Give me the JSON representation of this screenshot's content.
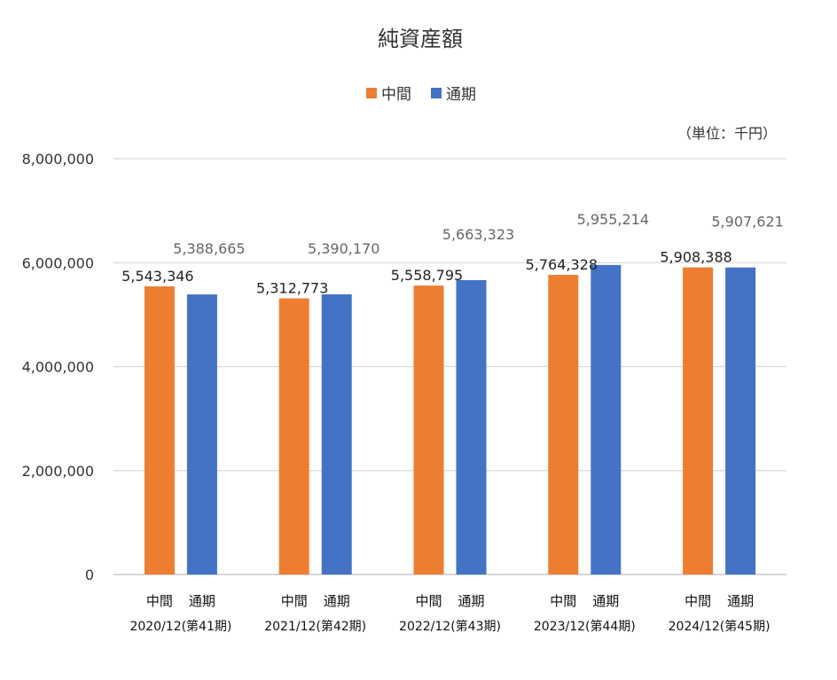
{
  "chart_data": {
    "type": "bar",
    "title": "純資産額",
    "unit_label": "（単位：千円）",
    "legend_position": "top-center",
    "grid": true,
    "ylim": [
      0,
      8000000
    ],
    "yticks": [
      "0",
      "2,000,000",
      "4,000,000",
      "6,000,000",
      "8,000,000"
    ],
    "ytick_values": [
      0,
      2000000,
      4000000,
      6000000,
      8000000
    ],
    "categories": [
      "2020/12(第41期)",
      "2021/12(第42期)",
      "2022/12(第43期)",
      "2023/12(第44期)",
      "2024/12(第45期)"
    ],
    "bar_labels": [
      "中間",
      "通期"
    ],
    "series": [
      {
        "name": "中間",
        "color": "#ED7D31",
        "values": [
          5543346,
          5312773,
          5558795,
          5764328,
          5908388
        ],
        "labels": [
          "5,543,346",
          "5,312,773",
          "5,558,795",
          "5,764,328",
          "5,908,388"
        ]
      },
      {
        "name": "通期",
        "color": "#4472C4",
        "values": [
          5388665,
          5390170,
          5663323,
          5955214,
          5907621
        ],
        "labels": [
          "5,388,665",
          "5,390,170",
          "5,663,323",
          "5,955,214",
          "5,907,621"
        ]
      }
    ]
  }
}
